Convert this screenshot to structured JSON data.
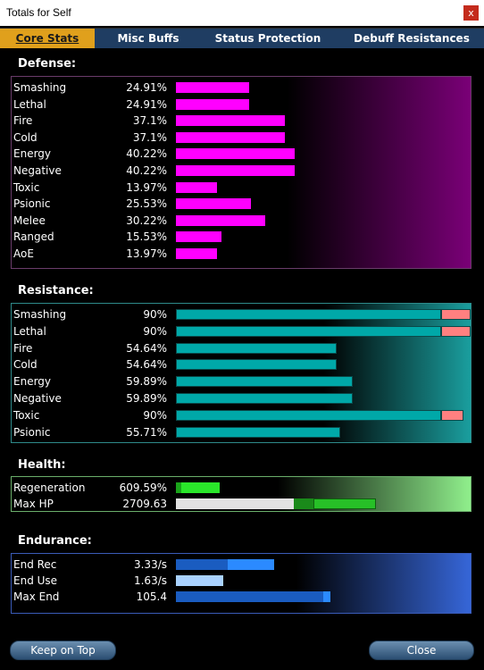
{
  "window": {
    "title": "Totals for Self",
    "close_glyph": "x"
  },
  "tabs": [
    {
      "label": "Core Stats",
      "active": true
    },
    {
      "label": "Misc Buffs",
      "active": false
    },
    {
      "label": "Status Protection",
      "active": false
    },
    {
      "label": "Debuff Resistances",
      "active": false
    }
  ],
  "sections": {
    "defense": {
      "title": "Defense:",
      "color": "#ff00ff",
      "rows": [
        {
          "label": "Smashing",
          "value": "24.91%",
          "fraction": 0.2491
        },
        {
          "label": "Lethal",
          "value": "24.91%",
          "fraction": 0.2491
        },
        {
          "label": "Fire",
          "value": "37.1%",
          "fraction": 0.371
        },
        {
          "label": "Cold",
          "value": "37.1%",
          "fraction": 0.371
        },
        {
          "label": "Energy",
          "value": "40.22%",
          "fraction": 0.4022
        },
        {
          "label": "Negative",
          "value": "40.22%",
          "fraction": 0.4022
        },
        {
          "label": "Toxic",
          "value": "13.97%",
          "fraction": 0.1397
        },
        {
          "label": "Psionic",
          "value": "25.53%",
          "fraction": 0.2553
        },
        {
          "label": "Melee",
          "value": "30.22%",
          "fraction": 0.3022
        },
        {
          "label": "Ranged",
          "value": "15.53%",
          "fraction": 0.1553
        },
        {
          "label": "AoE",
          "value": "13.97%",
          "fraction": 0.1397
        }
      ]
    },
    "resistance": {
      "title": "Resistance:",
      "color": "#00a8a8",
      "cap_color": "#ff8080",
      "rows": [
        {
          "label": "Smashing",
          "value": "90%",
          "fraction": 0.9,
          "overcap": 0.1
        },
        {
          "label": "Lethal",
          "value": "90%",
          "fraction": 0.9,
          "overcap": 0.1
        },
        {
          "label": "Fire",
          "value": "54.64%",
          "fraction": 0.5464,
          "overcap": 0
        },
        {
          "label": "Cold",
          "value": "54.64%",
          "fraction": 0.5464,
          "overcap": 0
        },
        {
          "label": "Energy",
          "value": "59.89%",
          "fraction": 0.5989,
          "overcap": 0
        },
        {
          "label": "Negative",
          "value": "59.89%",
          "fraction": 0.5989,
          "overcap": 0
        },
        {
          "label": "Toxic",
          "value": "90%",
          "fraction": 0.9,
          "overcap": 0.075
        },
        {
          "label": "Psionic",
          "value": "55.71%",
          "fraction": 0.5571,
          "overcap": 0
        }
      ]
    },
    "health": {
      "title": "Health:",
      "rows": [
        {
          "label": "Regeneration",
          "value": "609.59%"
        },
        {
          "label": "Max HP",
          "value": "2709.63"
        }
      ]
    },
    "endurance": {
      "title": "Endurance:",
      "rows": [
        {
          "label": "End Rec",
          "value": "3.33/s"
        },
        {
          "label": "End Use",
          "value": "1.63/s"
        },
        {
          "label": "Max End",
          "value": "105.4"
        }
      ]
    }
  },
  "buttons": {
    "keep_on_top": "Keep on Top",
    "close": "Close"
  }
}
